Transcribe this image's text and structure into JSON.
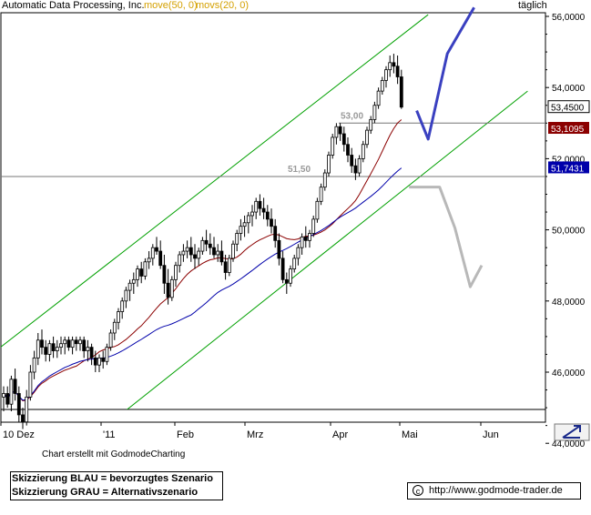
{
  "header": {
    "title": "Automatic Data Processing, Inc.",
    "ma1": "move(50, 0)",
    "ma2": "movs(20, 0)",
    "period": "täglich"
  },
  "colors": {
    "ma_slow": "#0000aa",
    "ma_fast": "#8b0000",
    "channel": "#00a000",
    "scenario_blue": "#3a40c0",
    "scenario_gray": "#b8b8b8",
    "ma_label_yellow": "#d4a000",
    "last_price_bg": "#000000",
    "ma_fast_bg": "#8b0000",
    "ma_slow_bg": "#0000aa"
  },
  "chart_data": {
    "type": "candlestick",
    "y_ticks": [
      "56,0000",
      "54,0000",
      "52,0000",
      "50,0000",
      "48,0000",
      "46,0000",
      "44,0000"
    ],
    "x_ticks": [
      "10 Dez",
      "'11",
      "Feb",
      "Mrz",
      "Apr",
      "Mai",
      "Jun"
    ],
    "ylim": [
      43.85,
      56.4
    ],
    "price_tags": [
      {
        "value": 53.45,
        "label": "53,4500",
        "role": "last_price"
      },
      {
        "value": 53.1095,
        "label": "53,1095",
        "role": "ma_fast"
      },
      {
        "value": 51.7431,
        "label": "51,7431",
        "role": "ma_slow"
      }
    ],
    "levels": [
      {
        "value": 53.0,
        "label": "53,00"
      },
      {
        "value": 51.5,
        "label": "51,50"
      }
    ],
    "channel": {
      "upper": [
        {
          "day": -5,
          "price": 46.35
        },
        {
          "day": 111,
          "price": 56.05
        }
      ],
      "lower": [
        {
          "day": 20,
          "price": 43.9
        },
        {
          "day": 137,
          "price": 53.9
        }
      ]
    },
    "scenario_blue": [
      {
        "day": 108,
        "price": 53.35
      },
      {
        "day": 111,
        "price": 52.55
      },
      {
        "day": 116,
        "price": 54.95
      },
      {
        "day": 123,
        "price": 56.25
      }
    ],
    "scenario_gray": [
      {
        "day": 106,
        "price": 51.2
      },
      {
        "day": 114,
        "price": 51.2
      },
      {
        "day": 118,
        "price": 50.05
      },
      {
        "day": 122,
        "price": 48.4
      },
      {
        "day": 125,
        "price": 49.0
      }
    ],
    "candles": [
      [
        45.3,
        45.6,
        44.9,
        45.4
      ],
      [
        45.4,
        45.6,
        45.0,
        45.1
      ],
      [
        45.1,
        45.9,
        44.9,
        45.8
      ],
      [
        45.8,
        46.1,
        45.2,
        45.4
      ],
      [
        45.4,
        45.6,
        44.6,
        44.8
      ],
      [
        44.8,
        45.0,
        44.4,
        44.6
      ],
      [
        44.6,
        45.5,
        44.5,
        45.3
      ],
      [
        45.3,
        46.2,
        45.2,
        46.0
      ],
      [
        46.0,
        46.6,
        45.8,
        46.4
      ],
      [
        46.4,
        47.1,
        46.2,
        46.9
      ],
      [
        46.9,
        47.2,
        46.5,
        46.7
      ],
      [
        46.7,
        46.9,
        46.3,
        46.5
      ],
      [
        46.5,
        46.9,
        46.3,
        46.8
      ],
      [
        46.8,
        47.0,
        46.4,
        46.6
      ],
      [
        46.6,
        46.9,
        46.4,
        46.7
      ],
      [
        46.7,
        47.0,
        46.5,
        46.8
      ],
      [
        46.8,
        47.0,
        46.5,
        46.9
      ],
      [
        46.9,
        47.0,
        46.6,
        46.7
      ],
      [
        46.7,
        47.0,
        46.5,
        46.9
      ],
      [
        46.9,
        47.0,
        46.6,
        46.8
      ],
      [
        46.8,
        47.0,
        46.6,
        46.9
      ],
      [
        46.9,
        47.0,
        46.4,
        46.6
      ],
      [
        46.6,
        46.9,
        46.3,
        46.7
      ],
      [
        46.7,
        46.8,
        46.2,
        46.4
      ],
      [
        46.4,
        46.6,
        46.0,
        46.2
      ],
      [
        46.2,
        46.5,
        46.0,
        46.4
      ],
      [
        46.4,
        46.6,
        46.1,
        46.3
      ],
      [
        46.3,
        46.8,
        46.2,
        46.7
      ],
      [
        46.7,
        47.2,
        46.6,
        47.1
      ],
      [
        47.1,
        47.5,
        46.9,
        47.4
      ],
      [
        47.4,
        47.8,
        47.2,
        47.7
      ],
      [
        47.7,
        48.1,
        47.5,
        48.0
      ],
      [
        48.0,
        48.4,
        47.8,
        48.3
      ],
      [
        48.3,
        48.6,
        48.0,
        48.5
      ],
      [
        48.5,
        48.8,
        48.2,
        48.6
      ],
      [
        48.6,
        49.0,
        48.4,
        48.9
      ],
      [
        48.9,
        49.1,
        48.5,
        48.7
      ],
      [
        48.7,
        49.2,
        48.6,
        49.1
      ],
      [
        49.1,
        49.4,
        48.9,
        49.2
      ],
      [
        49.2,
        49.6,
        49.0,
        49.5
      ],
      [
        49.5,
        49.8,
        49.3,
        49.4
      ],
      [
        49.4,
        49.7,
        48.9,
        49.0
      ],
      [
        49.0,
        49.3,
        48.2,
        48.5
      ],
      [
        48.5,
        48.9,
        47.9,
        48.1
      ],
      [
        48.1,
        48.7,
        48.0,
        48.6
      ],
      [
        48.6,
        49.1,
        48.4,
        49.0
      ],
      [
        49.0,
        49.4,
        48.8,
        49.3
      ],
      [
        49.3,
        49.6,
        49.1,
        49.4
      ],
      [
        49.4,
        49.7,
        49.2,
        49.5
      ],
      [
        49.5,
        49.8,
        49.1,
        49.3
      ],
      [
        49.3,
        49.6,
        48.9,
        49.2
      ],
      [
        49.2,
        49.5,
        49.0,
        49.4
      ],
      [
        49.4,
        49.8,
        49.3,
        49.7
      ],
      [
        49.7,
        50.0,
        49.4,
        49.6
      ],
      [
        49.6,
        49.9,
        49.3,
        49.5
      ],
      [
        49.5,
        49.8,
        49.2,
        49.3
      ],
      [
        49.3,
        49.6,
        49.1,
        49.4
      ],
      [
        49.4,
        49.7,
        49.0,
        49.1
      ],
      [
        49.1,
        49.3,
        48.6,
        48.8
      ],
      [
        48.8,
        49.3,
        48.7,
        49.2
      ],
      [
        49.2,
        49.7,
        49.1,
        49.6
      ],
      [
        49.6,
        50.0,
        49.4,
        49.9
      ],
      [
        49.9,
        50.3,
        49.7,
        50.1
      ],
      [
        50.1,
        50.4,
        49.8,
        50.2
      ],
      [
        50.2,
        50.5,
        49.9,
        50.4
      ],
      [
        50.4,
        50.7,
        50.1,
        50.5
      ],
      [
        50.5,
        50.9,
        50.3,
        50.8
      ],
      [
        50.8,
        51.0,
        50.4,
        50.6
      ],
      [
        50.6,
        50.9,
        50.3,
        50.5
      ],
      [
        50.5,
        50.7,
        50.1,
        50.3
      ],
      [
        50.3,
        50.6,
        49.9,
        50.1
      ],
      [
        50.1,
        50.3,
        49.5,
        49.7
      ],
      [
        49.7,
        49.9,
        49.0,
        49.2
      ],
      [
        49.2,
        49.4,
        48.5,
        48.6
      ],
      [
        48.6,
        48.8,
        48.2,
        48.5
      ],
      [
        48.5,
        49.0,
        48.4,
        48.9
      ],
      [
        48.9,
        49.3,
        48.8,
        49.2
      ],
      [
        49.2,
        49.6,
        49.0,
        49.5
      ],
      [
        49.5,
        49.9,
        49.3,
        49.8
      ],
      [
        49.8,
        50.1,
        49.5,
        49.7
      ],
      [
        49.7,
        50.0,
        49.5,
        49.9
      ],
      [
        49.9,
        50.4,
        49.8,
        50.3
      ],
      [
        50.3,
        50.9,
        50.2,
        50.8
      ],
      [
        50.8,
        51.3,
        50.7,
        51.2
      ],
      [
        51.2,
        51.7,
        51.1,
        51.6
      ],
      [
        51.6,
        52.2,
        51.5,
        52.1
      ],
      [
        52.1,
        52.7,
        52.0,
        52.6
      ],
      [
        52.6,
        53.0,
        52.4,
        52.9
      ],
      [
        52.9,
        53.0,
        52.5,
        52.7
      ],
      [
        52.7,
        52.9,
        52.2,
        52.4
      ],
      [
        52.4,
        52.6,
        51.9,
        52.1
      ],
      [
        52.1,
        52.3,
        51.6,
        51.8
      ],
      [
        51.8,
        52.0,
        51.4,
        51.6
      ],
      [
        51.6,
        52.1,
        51.5,
        52.0
      ],
      [
        52.0,
        52.5,
        51.9,
        52.4
      ],
      [
        52.4,
        52.9,
        52.3,
        52.8
      ],
      [
        52.8,
        53.2,
        52.7,
        53.1
      ],
      [
        53.1,
        53.6,
        53.0,
        53.5
      ],
      [
        53.5,
        54.0,
        53.4,
        53.9
      ],
      [
        53.9,
        54.3,
        53.8,
        54.2
      ],
      [
        54.2,
        54.6,
        54.0,
        54.5
      ],
      [
        54.5,
        54.9,
        54.3,
        54.7
      ],
      [
        54.7,
        54.95,
        54.4,
        54.6
      ],
      [
        54.6,
        54.9,
        54.1,
        54.3
      ],
      [
        54.3,
        54.5,
        53.4,
        53.45
      ]
    ]
  },
  "footer": {
    "credit": "Chart erstellt mit GodmodeCharting",
    "legend_blue": "Skizzierung BLAU = bevorzugtes Szenario",
    "legend_gray": "Skizzierung GRAU = Alternativszenario",
    "source_copy": "c",
    "source_url": "http://www.godmode-trader.de"
  }
}
